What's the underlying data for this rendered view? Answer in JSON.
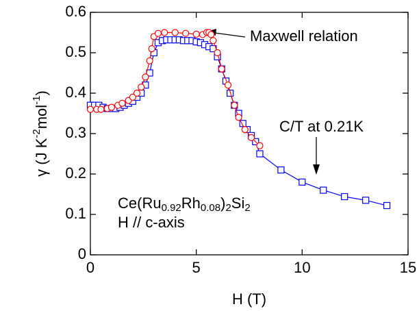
{
  "chart_data": {
    "type": "line",
    "xlabel": "H (T)",
    "ylabel_parts": [
      "γ (J K",
      "-2",
      "mol",
      "-1",
      ")"
    ],
    "sample_parts": [
      "Ce(Ru",
      "0.92",
      "Rh",
      "0.08",
      ")",
      "2",
      "Si",
      "2"
    ],
    "field_note": "H // c-axis",
    "xlim": [
      0,
      15
    ],
    "xticks": [
      0,
      5,
      10,
      15
    ],
    "ylim": [
      0,
      0.6
    ],
    "yticks": [
      0,
      0.1,
      0.2,
      0.3,
      0.4,
      0.5,
      0.6
    ],
    "series": [
      {
        "name": "C/T at 0.21K",
        "color": "#0000ff",
        "marker": "square",
        "x": [
          0,
          0.2,
          0.4,
          0.6,
          0.8,
          1.0,
          1.2,
          1.4,
          1.6,
          1.8,
          2.0,
          2.2,
          2.4,
          2.6,
          2.8,
          3.0,
          3.2,
          3.4,
          3.6,
          3.8,
          4.0,
          4.2,
          4.4,
          4.6,
          4.8,
          5.0,
          5.2,
          5.4,
          5.6,
          5.8,
          6.0,
          6.2,
          6.4,
          6.6,
          6.8,
          7.0,
          7.2,
          7.4,
          7.6,
          7.8,
          8.0,
          9,
          10,
          11,
          12,
          13,
          14
        ],
        "values": [
          0.37,
          0.37,
          0.37,
          0.365,
          0.362,
          0.362,
          0.362,
          0.365,
          0.37,
          0.375,
          0.38,
          0.39,
          0.4,
          0.42,
          0.45,
          0.5,
          0.525,
          0.53,
          0.532,
          0.532,
          0.532,
          0.532,
          0.53,
          0.53,
          0.53,
          0.527,
          0.525,
          0.52,
          0.515,
          0.51,
          0.49,
          0.46,
          0.43,
          0.4,
          0.37,
          0.35,
          0.325,
          0.31,
          0.295,
          0.28,
          0.25,
          0.21,
          0.18,
          0.16,
          0.144,
          0.135,
          0.122
        ]
      },
      {
        "name": "Maxwell relation",
        "color": "#ff0000",
        "marker": "circle",
        "x": [
          0,
          0.3,
          0.5,
          0.8,
          1.0,
          1.3,
          1.5,
          1.8,
          2.0,
          2.2,
          2.4,
          2.6,
          2.8,
          2.9,
          3.0,
          3.2,
          3.5,
          4.0,
          4.5,
          5.0,
          5.3,
          5.5,
          5.6,
          5.7,
          5.8,
          6.0,
          6.2,
          6.5,
          6.8,
          7.0,
          7.3,
          7.6,
          8.0
        ],
        "values": [
          0.36,
          0.36,
          0.36,
          0.362,
          0.365,
          0.37,
          0.375,
          0.382,
          0.39,
          0.4,
          0.415,
          0.44,
          0.48,
          0.51,
          0.54,
          0.548,
          0.55,
          0.55,
          0.548,
          0.546,
          0.545,
          0.55,
          0.55,
          0.545,
          0.53,
          0.5,
          0.46,
          0.42,
          0.37,
          0.34,
          0.31,
          0.29,
          0.27
        ]
      }
    ]
  }
}
